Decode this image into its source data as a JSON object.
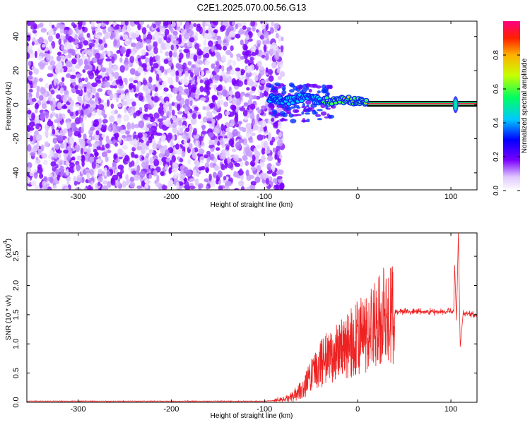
{
  "title": "C2E1.2025.070.00.56.G13",
  "charts": [
    {
      "type": "heatmap",
      "xlabel": "Height of straight line (km)",
      "ylabel": "Frequency (Hz)",
      "xlim": [
        -355,
        128
      ],
      "ylim": [
        -50,
        49
      ],
      "xticks": [
        "-300",
        "-200",
        "-100",
        "0",
        "100"
      ],
      "xtick_values": [
        -300,
        -200,
        -100,
        0,
        100
      ],
      "yticks": [
        "-40",
        "-20",
        "0",
        "20",
        "40"
      ],
      "ytick_values": [
        -40,
        -20,
        0,
        20,
        40
      ],
      "colorbar": {
        "label": "Normalized spectral amplitude",
        "range": [
          0,
          1
        ],
        "ticks": [
          "0.0",
          "0.2",
          "0.4",
          "0.6",
          "0.8"
        ],
        "tick_values": [
          0.0,
          0.2,
          0.4,
          0.6,
          0.8
        ]
      },
      "noise_region_x": [
        -355,
        -90
      ],
      "signal_track": [
        {
          "x": -95,
          "y": 4
        },
        {
          "x": -85,
          "y": 3
        },
        {
          "x": -75,
          "y": 2
        },
        {
          "x": -60,
          "y": 4
        },
        {
          "x": -45,
          "y": 3
        },
        {
          "x": -30,
          "y": 2
        },
        {
          "x": -15,
          "y": 3
        },
        {
          "x": 0,
          "y": 2
        },
        {
          "x": 10,
          "y": 1
        },
        {
          "x": 30,
          "y": 1
        },
        {
          "x": 60,
          "y": 1
        },
        {
          "x": 100,
          "y": 0.5
        },
        {
          "x": 128,
          "y": 0.5
        }
      ],
      "spike_x": 105
    },
    {
      "type": "line",
      "xlabel": "Height of straight line (km)",
      "ylabel": "SNR (10 * v/v)",
      "multiplier": "(x10",
      "multiplier_exp": "4",
      "multiplier_close": ")",
      "xlim": [
        -355,
        128
      ],
      "ylim": [
        0,
        2.9
      ],
      "xticks": [
        "-300",
        "-200",
        "-100",
        "0",
        "100"
      ],
      "xtick_values": [
        -300,
        -200,
        -100,
        0,
        100
      ],
      "yticks": [
        "0.0",
        "0.5",
        "1.0",
        "1.5",
        "2.0",
        "2.5"
      ],
      "ytick_values": [
        0.0,
        0.5,
        1.0,
        1.5,
        2.0,
        2.5
      ],
      "color": "#ee2222",
      "envelope": [
        {
          "x": -355,
          "y": 0.02
        },
        {
          "x": -100,
          "y": 0.02
        },
        {
          "x": -80,
          "y": 0.04
        },
        {
          "x": -60,
          "y": 0.2
        },
        {
          "x": -50,
          "y": 0.45
        },
        {
          "x": -40,
          "y": 0.65
        },
        {
          "x": -30,
          "y": 0.8
        },
        {
          "x": -20,
          "y": 0.9
        },
        {
          "x": -10,
          "y": 1.0
        },
        {
          "x": 0,
          "y": 1.1
        },
        {
          "x": 10,
          "y": 1.25
        },
        {
          "x": 20,
          "y": 1.38
        },
        {
          "x": 30,
          "y": 1.48
        },
        {
          "x": 40,
          "y": 1.55
        },
        {
          "x": 60,
          "y": 1.55
        },
        {
          "x": 100,
          "y": 1.55
        },
        {
          "x": 128,
          "y": 1.5
        }
      ],
      "features": [
        {
          "x": 104,
          "y": 2.35
        },
        {
          "x": 106,
          "y": 1.4
        },
        {
          "x": 108,
          "y": 2.9
        },
        {
          "x": 110,
          "y": 0.95
        },
        {
          "x": 113,
          "y": 1.5
        }
      ]
    }
  ]
}
